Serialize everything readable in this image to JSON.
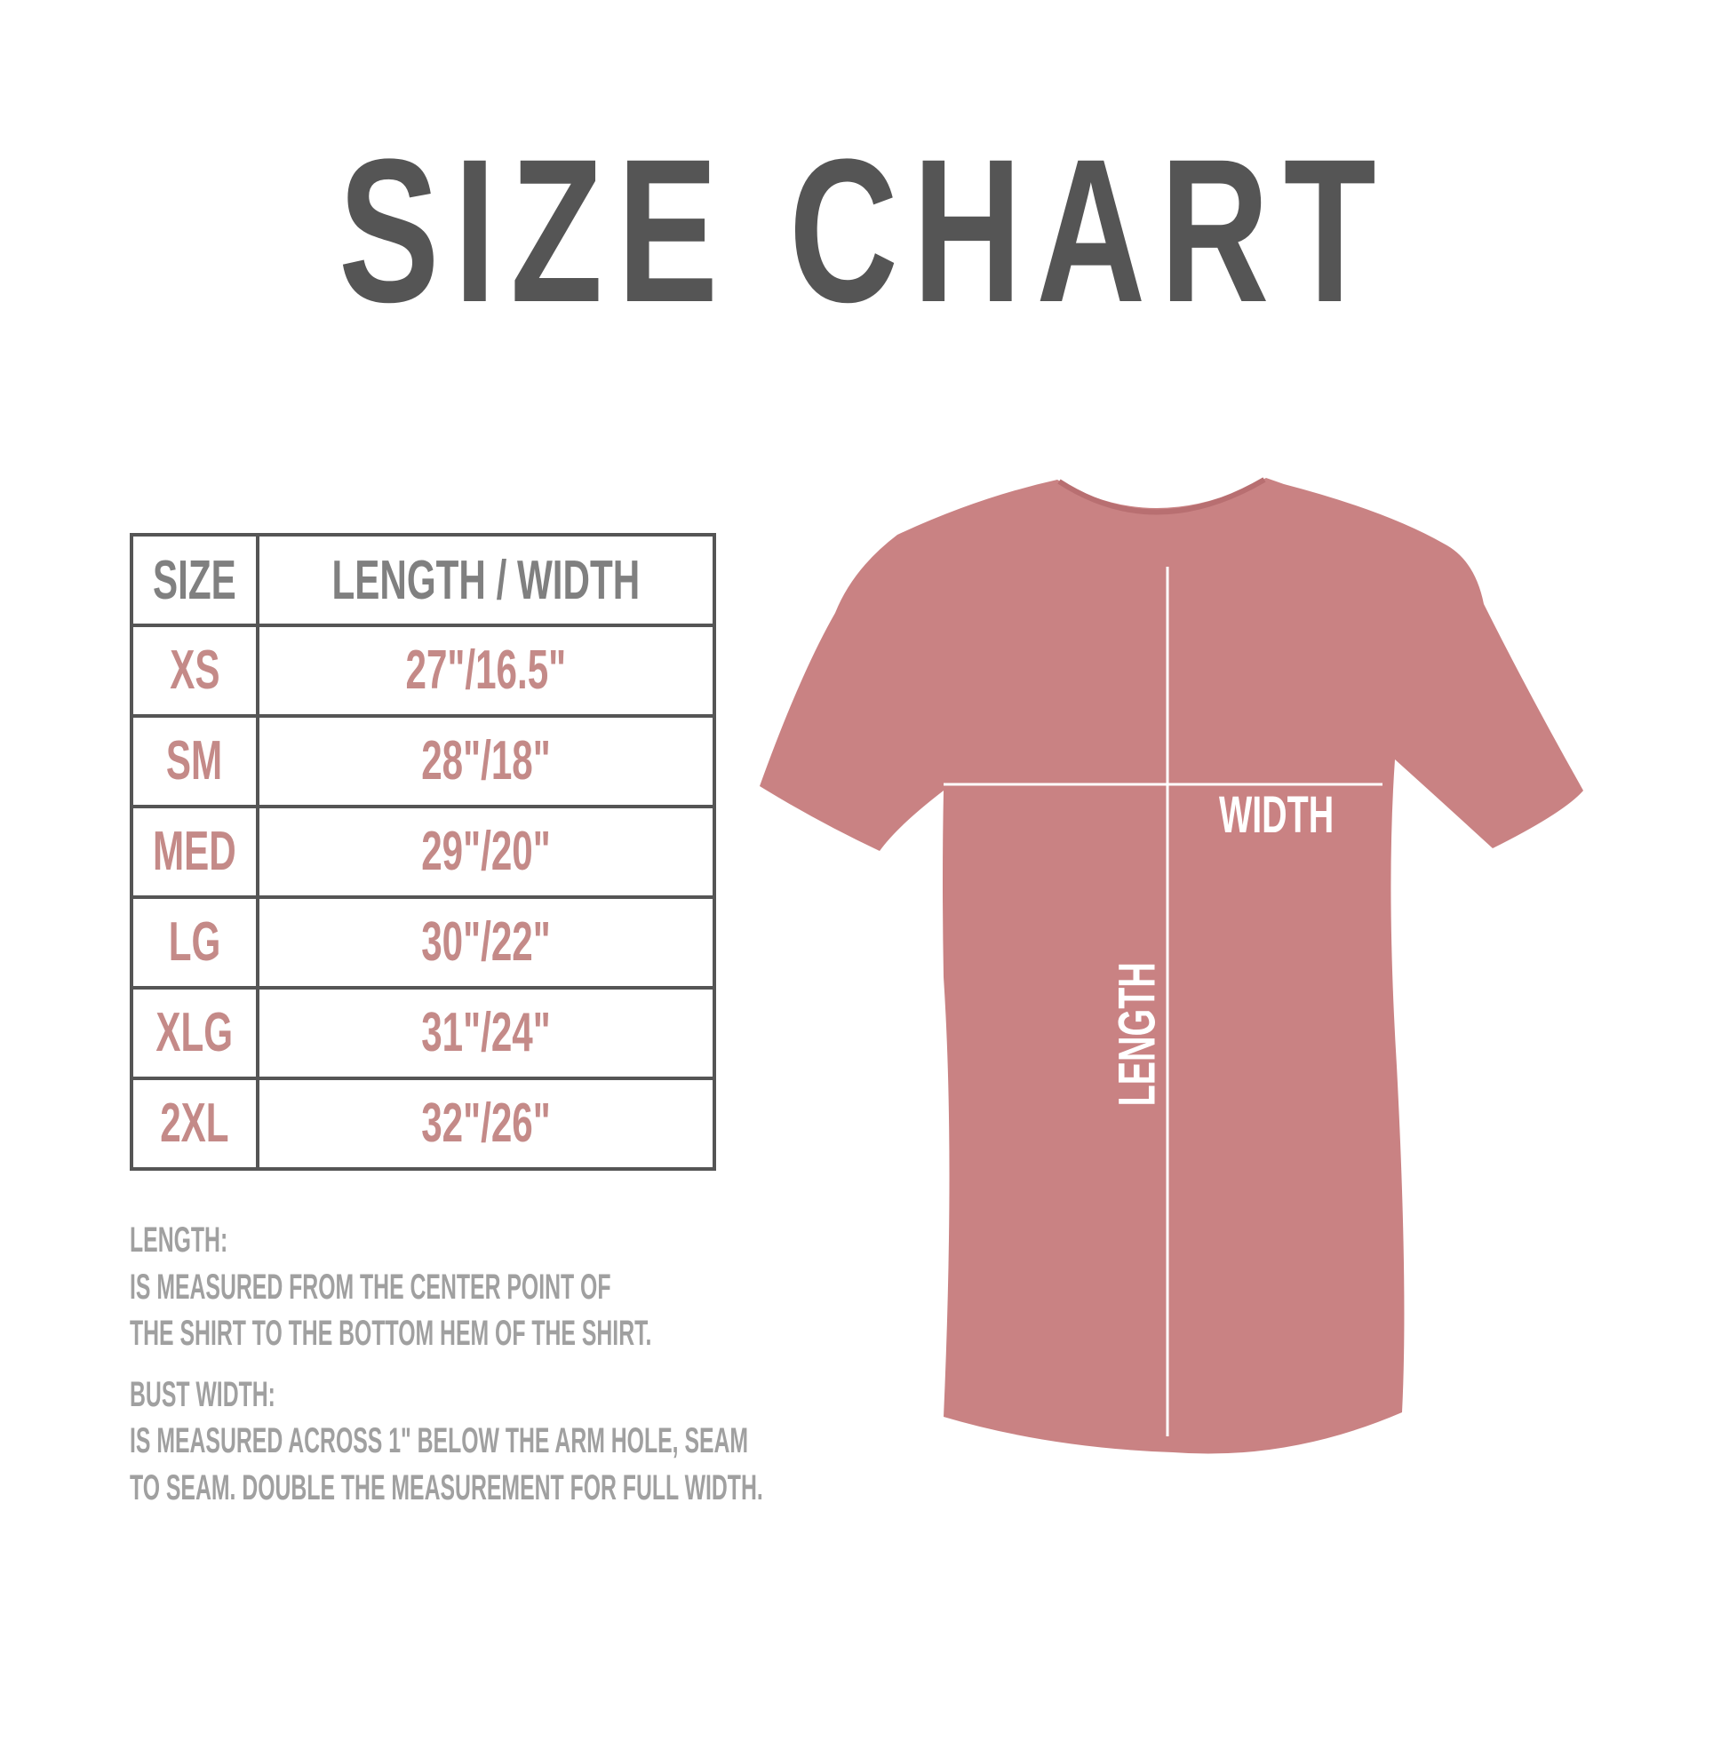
{
  "title": "SIZE CHART",
  "table": {
    "headers": [
      "SIZE",
      "LENGTH / WIDTH"
    ],
    "rows": [
      {
        "size": "XS",
        "measure": "27\"/16.5\""
      },
      {
        "size": "SM",
        "measure": "28\"/18\""
      },
      {
        "size": "MED",
        "measure": "29\"/20\""
      },
      {
        "size": "LG",
        "measure": "30\"/22\""
      },
      {
        "size": "XLG",
        "measure": "31\"/24\""
      },
      {
        "size": "2XL",
        "measure": "32\"/26\""
      }
    ]
  },
  "notes": {
    "length_heading": "LENGTH:",
    "length_line1": "IS MEASURED FROM THE CENTER POINT OF",
    "length_line2": "THE SHIRT TO THE BOTTOM HEM OF THE SHIRT.",
    "width_heading": "BUST WIDTH:",
    "width_line1": "IS MEASURED ACROSS  1\" BELOW THE ARM HOLE, SEAM",
    "width_line2": "TO SEAM. DOUBLE THE MEASUREMENT FOR FULL WIDTH."
  },
  "shirt": {
    "width_label": "WIDTH",
    "length_label": "LENGTH",
    "color": "#c98283"
  },
  "colors": {
    "title": "#555555",
    "value_text": "#c48a88",
    "header_text": "#808080",
    "notes_text": "#a0a0a0"
  }
}
